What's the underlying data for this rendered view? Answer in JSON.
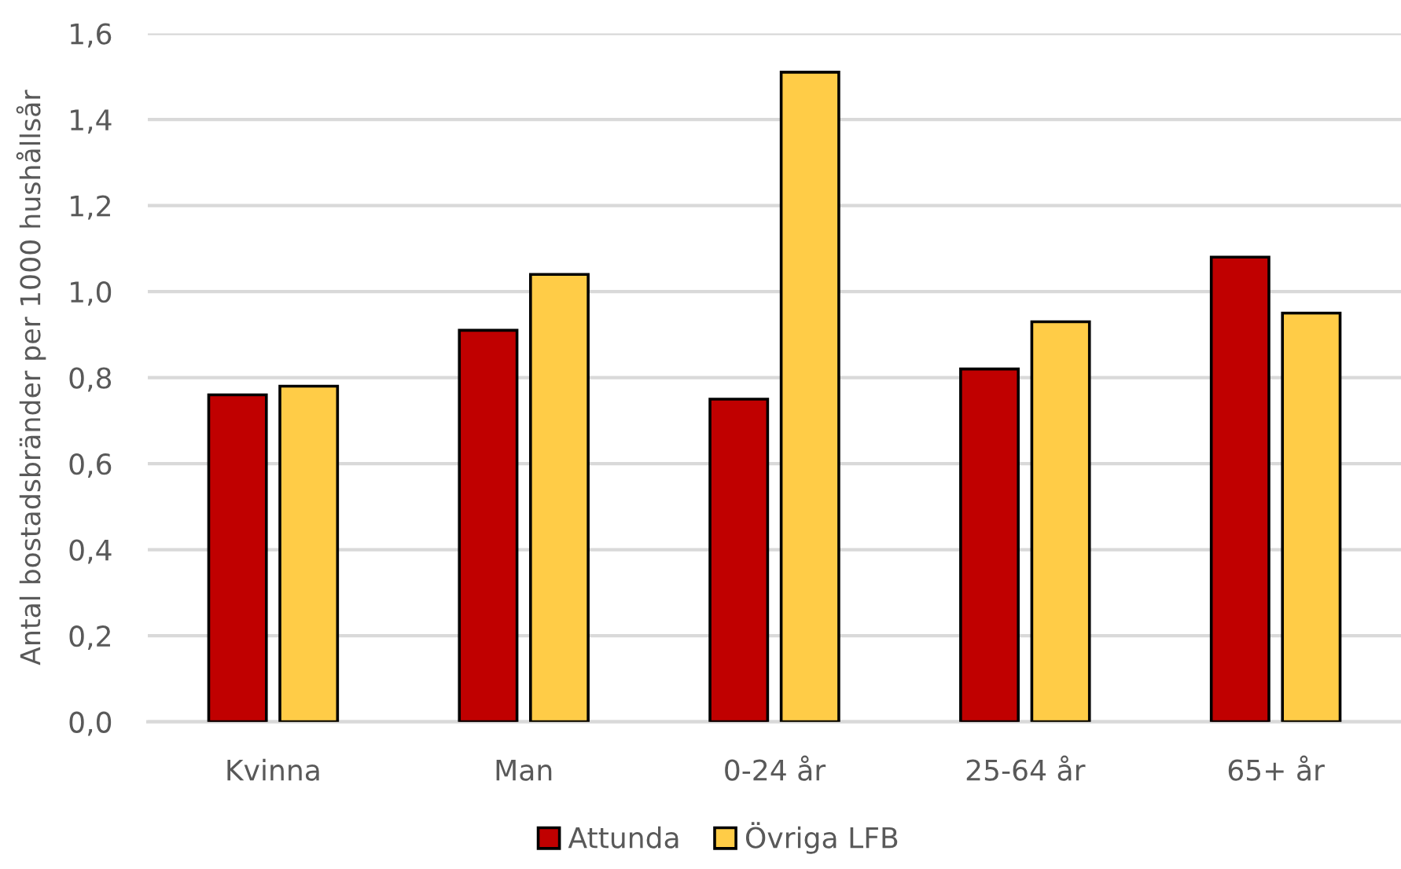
{
  "chart_data": {
    "type": "bar",
    "ylabel": "Antal bostadsbränder per 1000 hushållsår",
    "categories": [
      "Kvinna",
      "Man",
      "0-24 år",
      "25-64 år",
      "65+ år"
    ],
    "series": [
      {
        "name": "Attunda",
        "color": "#c00000",
        "values": [
          0.76,
          0.91,
          0.75,
          0.82,
          1.08
        ]
      },
      {
        "name": "Övriga LFB",
        "color": "#ffcc47",
        "values": [
          0.78,
          1.04,
          1.51,
          0.93,
          0.95
        ]
      }
    ],
    "ylim": [
      0,
      1.6
    ],
    "yticks": [
      {
        "value": 0,
        "label": "0,0"
      },
      {
        "value": 0.2,
        "label": "0,2"
      },
      {
        "value": 0.4,
        "label": "0,4"
      },
      {
        "value": 0.6,
        "label": "0,6"
      },
      {
        "value": 0.8,
        "label": "0,8"
      },
      {
        "value": 1.0,
        "label": "1,0"
      },
      {
        "value": 1.2,
        "label": "1,2"
      },
      {
        "value": 1.4,
        "label": "1,4"
      },
      {
        "value": 1.6,
        "label": "1,6"
      }
    ],
    "grid": "y",
    "legend": "bottom"
  }
}
